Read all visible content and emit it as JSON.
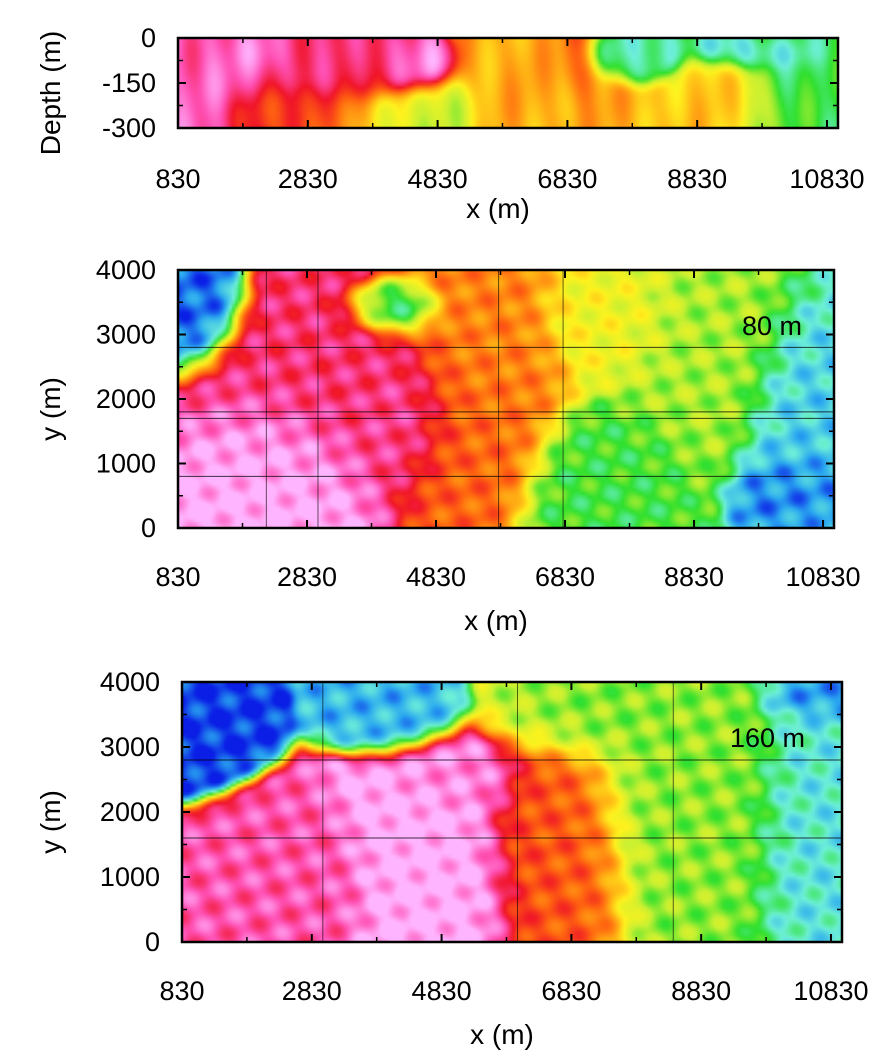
{
  "chart_data": [
    {
      "type": "heatmap",
      "title": "",
      "xlabel": "x (m)",
      "ylabel": "Depth (m)",
      "xlim": [
        830,
        11000
      ],
      "ylim": [
        -300,
        0
      ],
      "xticks": [
        "830",
        "2830",
        "4830",
        "6830",
        "8830",
        "10830"
      ],
      "yticks": [
        "0",
        "-150",
        "-300"
      ],
      "annotation": "",
      "grid": false,
      "colormap": [
        "#0a1ee6",
        "#2aa8f0",
        "#6ef0d8",
        "#2ee02e",
        "#c8f032",
        "#fff21e",
        "#ffae14",
        "#ff6410",
        "#f01428",
        "#ff50b4",
        "#ffb4ff"
      ],
      "blobs": [
        {
          "x": 1400,
          "y": -120,
          "rx": 700,
          "ry": 200,
          "v": 0.92
        },
        {
          "x": 2300,
          "y": -80,
          "rx": 900,
          "ry": 120,
          "v": 0.88
        },
        {
          "x": 2100,
          "y": -60,
          "rx": 350,
          "ry": 60,
          "v": 1.0
        },
        {
          "x": 3600,
          "y": -110,
          "rx": 800,
          "ry": 90,
          "v": 0.82
        },
        {
          "x": 4300,
          "y": -100,
          "rx": 500,
          "ry": 70,
          "v": 0.98
        },
        {
          "x": 4500,
          "y": -250,
          "rx": 700,
          "ry": 90,
          "v": 0.42
        },
        {
          "x": 2600,
          "y": -240,
          "rx": 1000,
          "ry": 80,
          "v": 0.72
        },
        {
          "x": 6500,
          "y": -160,
          "rx": 900,
          "ry": 150,
          "v": 0.6
        },
        {
          "x": 7000,
          "y": -100,
          "rx": 250,
          "ry": 100,
          "v": 0.78
        },
        {
          "x": 7800,
          "y": -60,
          "rx": 600,
          "ry": 60,
          "v": 0.2
        },
        {
          "x": 9300,
          "y": -190,
          "rx": 700,
          "ry": 110,
          "v": 0.56
        },
        {
          "x": 10300,
          "y": -100,
          "rx": 700,
          "ry": 200,
          "v": 0.28
        },
        {
          "x": 9800,
          "y": -50,
          "rx": 700,
          "ry": 50,
          "v": 0.12
        }
      ]
    },
    {
      "type": "heatmap",
      "title": "",
      "xlabel": "x (m)",
      "ylabel": "y (m)",
      "xlim": [
        830,
        11000
      ],
      "ylim": [
        0,
        4000
      ],
      "xticks": [
        "830",
        "2830",
        "4830",
        "6830",
        "8830",
        "10830"
      ],
      "yticks": [
        "4000",
        "3000",
        "2000",
        "1000",
        "0"
      ],
      "annotation": "80 m",
      "grid": true,
      "colormap": [
        "#0a1ee6",
        "#2aa8f0",
        "#6ef0d8",
        "#2ee02e",
        "#c8f032",
        "#fff21e",
        "#ffae14",
        "#ff6410",
        "#f01428",
        "#ff50b4",
        "#ffb4ff"
      ],
      "blobs": [
        {
          "x": 1000,
          "y": 3500,
          "rx": 500,
          "ry": 600,
          "v": 0.05
        },
        {
          "x": 2400,
          "y": 900,
          "rx": 900,
          "ry": 900,
          "v": 1.0
        },
        {
          "x": 3200,
          "y": 2200,
          "rx": 1300,
          "ry": 1100,
          "v": 0.85
        },
        {
          "x": 4400,
          "y": 1700,
          "rx": 600,
          "ry": 700,
          "v": 0.9
        },
        {
          "x": 4200,
          "y": 3400,
          "rx": 500,
          "ry": 300,
          "v": 0.22
        },
        {
          "x": 5600,
          "y": 2700,
          "rx": 900,
          "ry": 1200,
          "v": 0.66
        },
        {
          "x": 5300,
          "y": 1500,
          "rx": 800,
          "ry": 900,
          "v": 0.7
        },
        {
          "x": 7500,
          "y": 3200,
          "rx": 800,
          "ry": 700,
          "v": 0.48
        },
        {
          "x": 7600,
          "y": 800,
          "rx": 900,
          "ry": 800,
          "v": 0.3
        },
        {
          "x": 9000,
          "y": 2600,
          "rx": 1000,
          "ry": 1300,
          "v": 0.38
        },
        {
          "x": 10400,
          "y": 1500,
          "rx": 600,
          "ry": 1300,
          "v": 0.15
        },
        {
          "x": 10300,
          "y": 600,
          "rx": 600,
          "ry": 500,
          "v": 0.05
        }
      ]
    },
    {
      "type": "heatmap",
      "title": "",
      "xlabel": "x (m)",
      "ylabel": "y (m)",
      "xlim": [
        830,
        11000
      ],
      "ylim": [
        0,
        4000
      ],
      "xticks": [
        "830",
        "2830",
        "4830",
        "6830",
        "8830",
        "10830"
      ],
      "yticks": [
        "4000",
        "3000",
        "2000",
        "1000",
        "0"
      ],
      "annotation": "160 m",
      "grid": true,
      "colormap": [
        "#0a1ee6",
        "#2aa8f0",
        "#6ef0d8",
        "#2ee02e",
        "#c8f032",
        "#fff21e",
        "#ffae14",
        "#ff6410",
        "#f01428",
        "#ff50b4",
        "#ffb4ff"
      ],
      "blobs": [
        {
          "x": 1000,
          "y": 3500,
          "rx": 600,
          "ry": 600,
          "v": 0.02
        },
        {
          "x": 2400,
          "y": 800,
          "rx": 900,
          "ry": 800,
          "v": 0.9
        },
        {
          "x": 4700,
          "y": 1100,
          "rx": 900,
          "ry": 1200,
          "v": 1.0
        },
        {
          "x": 5100,
          "y": 2500,
          "rx": 700,
          "ry": 400,
          "v": 0.95
        },
        {
          "x": 4100,
          "y": 3600,
          "rx": 600,
          "ry": 400,
          "v": 0.12
        },
        {
          "x": 6600,
          "y": 1500,
          "rx": 800,
          "ry": 1300,
          "v": 0.72
        },
        {
          "x": 7000,
          "y": 3500,
          "rx": 800,
          "ry": 500,
          "v": 0.35
        },
        {
          "x": 8800,
          "y": 2200,
          "rx": 1200,
          "ry": 1600,
          "v": 0.36
        },
        {
          "x": 10400,
          "y": 2000,
          "rx": 600,
          "ry": 1600,
          "v": 0.18
        },
        {
          "x": 10500,
          "y": 3800,
          "rx": 500,
          "ry": 300,
          "v": 0.08
        }
      ]
    }
  ]
}
